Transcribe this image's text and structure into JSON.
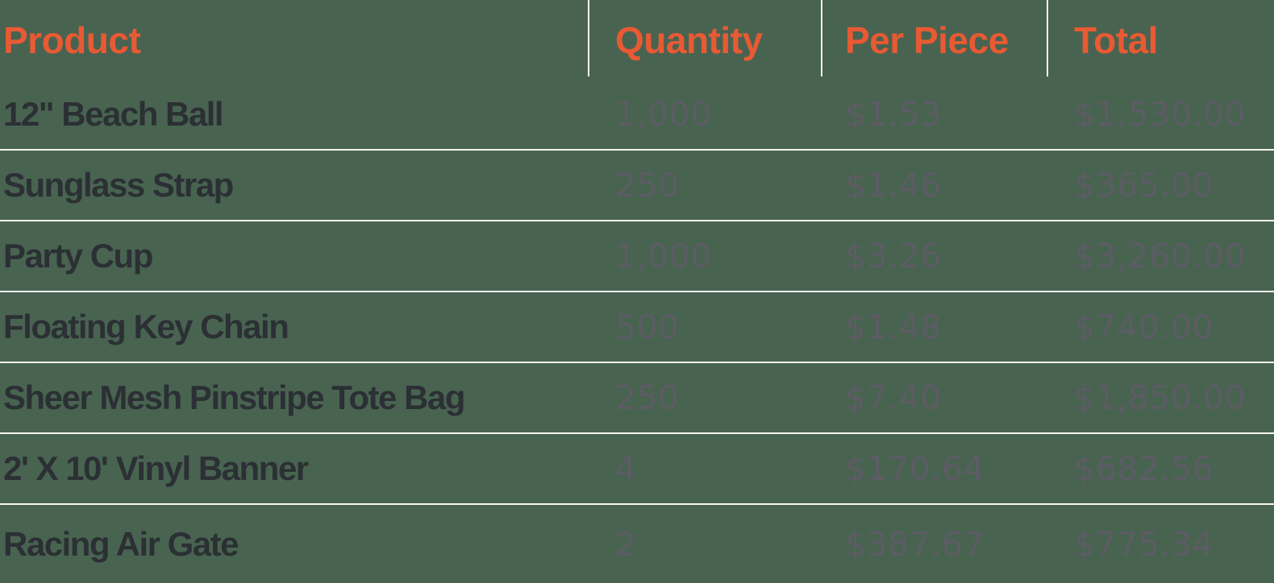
{
  "table": {
    "columns": [
      {
        "key": "product",
        "label": "Product"
      },
      {
        "key": "quantity",
        "label": "Quantity"
      },
      {
        "key": "per_piece",
        "label": "Per Piece"
      },
      {
        "key": "total",
        "label": "Total"
      }
    ],
    "rows": [
      {
        "product": "12\" Beach Ball",
        "quantity": "1,000",
        "per_piece": "$1.53",
        "total": "$1,530.00"
      },
      {
        "product": "Sunglass Strap",
        "quantity": "250",
        "per_piece": "$1.46",
        "total": "$365.00"
      },
      {
        "product": "Party Cup",
        "quantity": "1,000",
        "per_piece": "$3.26",
        "total": "$3,260.00"
      },
      {
        "product": "Floating Key Chain",
        "quantity": "500",
        "per_piece": "$1.48",
        "total": "$740.00"
      },
      {
        "product": "Sheer Mesh Pinstripe Tote Bag",
        "quantity": "250",
        "per_piece": "$7.40",
        "total": "$1,850.00"
      },
      {
        "product": "2' X 10' Vinyl Banner",
        "quantity": "4",
        "per_piece": "$170.64",
        "total": "$682.56"
      },
      {
        "product": "Racing Air Gate",
        "quantity": "2",
        "per_piece": "$387.67",
        "total": "$775.34"
      }
    ]
  },
  "colors": {
    "background": "#496351",
    "header_text": "#E85A33",
    "product_text": "#2B3034",
    "value_text": "#5C5C64",
    "divider": "#F7F4EE"
  }
}
